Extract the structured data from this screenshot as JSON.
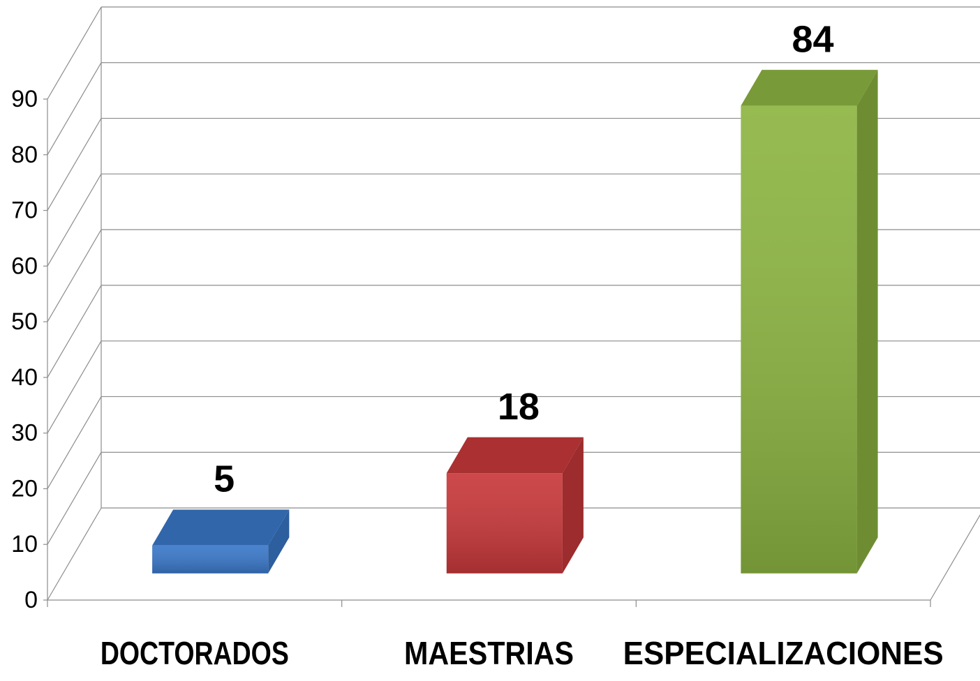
{
  "chart_data": {
    "type": "bar3d",
    "categories": [
      "DOCTORADOS",
      "MAESTRIAS",
      "ESPECIALIZACIONES"
    ],
    "values": [
      5,
      18,
      84
    ],
    "colors": [
      "#3a78c9",
      "#c8383a",
      "#8db542"
    ],
    "ylim": [
      0,
      90
    ],
    "yticks": [
      0,
      10,
      20,
      30,
      40,
      50,
      60,
      70,
      80,
      90
    ],
    "grid": true
  }
}
